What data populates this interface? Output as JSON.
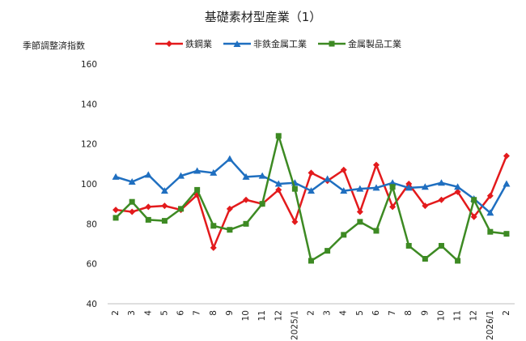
{
  "chart_data": {
    "type": "line",
    "title": "基礎素材型産業（1）",
    "ylabel": "季節調整済指数",
    "xlabel": "",
    "ylim": [
      40,
      160
    ],
    "yticks": [
      40,
      60,
      80,
      100,
      120,
      140,
      160
    ],
    "grid": false,
    "legend_position": "top",
    "categories": [
      "2",
      "3",
      "4",
      "5",
      "6",
      "7",
      "8",
      "9",
      "10",
      "11",
      "12",
      "2025/1",
      "2",
      "3",
      "4",
      "5",
      "6",
      "7",
      "8",
      "9",
      "10",
      "11",
      "12",
      "2026/1",
      "2"
    ],
    "series": [
      {
        "name": "鉄鋼業",
        "color": "#e31a1c",
        "marker": "diamond",
        "values": [
          87.0,
          86.0,
          88.5,
          89.0,
          87.0,
          94.5,
          68.0,
          87.5,
          92.0,
          90.0,
          97.0,
          81.0,
          105.5,
          101.5,
          107.0,
          86.0,
          109.5,
          88.5,
          100.0,
          89.0,
          92.0,
          96.0,
          83.5,
          94.0,
          114.0
        ]
      },
      {
        "name": "非鉄金属工業",
        "color": "#1f6fc0",
        "marker": "triangle",
        "values": [
          103.5,
          101.0,
          104.5,
          96.5,
          104.0,
          106.5,
          105.5,
          112.5,
          103.5,
          104.0,
          100.0,
          100.5,
          96.5,
          102.5,
          96.5,
          97.5,
          98.0,
          100.5,
          98.0,
          98.5,
          100.5,
          98.5,
          92.5,
          85.5,
          100.0
        ]
      },
      {
        "name": "金属製品工業",
        "color": "#3d8a23",
        "marker": "square",
        "values": [
          83.0,
          91.0,
          82.0,
          81.5,
          87.5,
          97.0,
          79.0,
          77.0,
          80.0,
          90.0,
          124.0,
          97.5,
          61.5,
          66.5,
          74.5,
          81.0,
          76.5,
          98.5,
          69.0,
          62.5,
          69.0,
          61.5,
          92.0,
          76.0,
          75.0
        ]
      }
    ]
  }
}
